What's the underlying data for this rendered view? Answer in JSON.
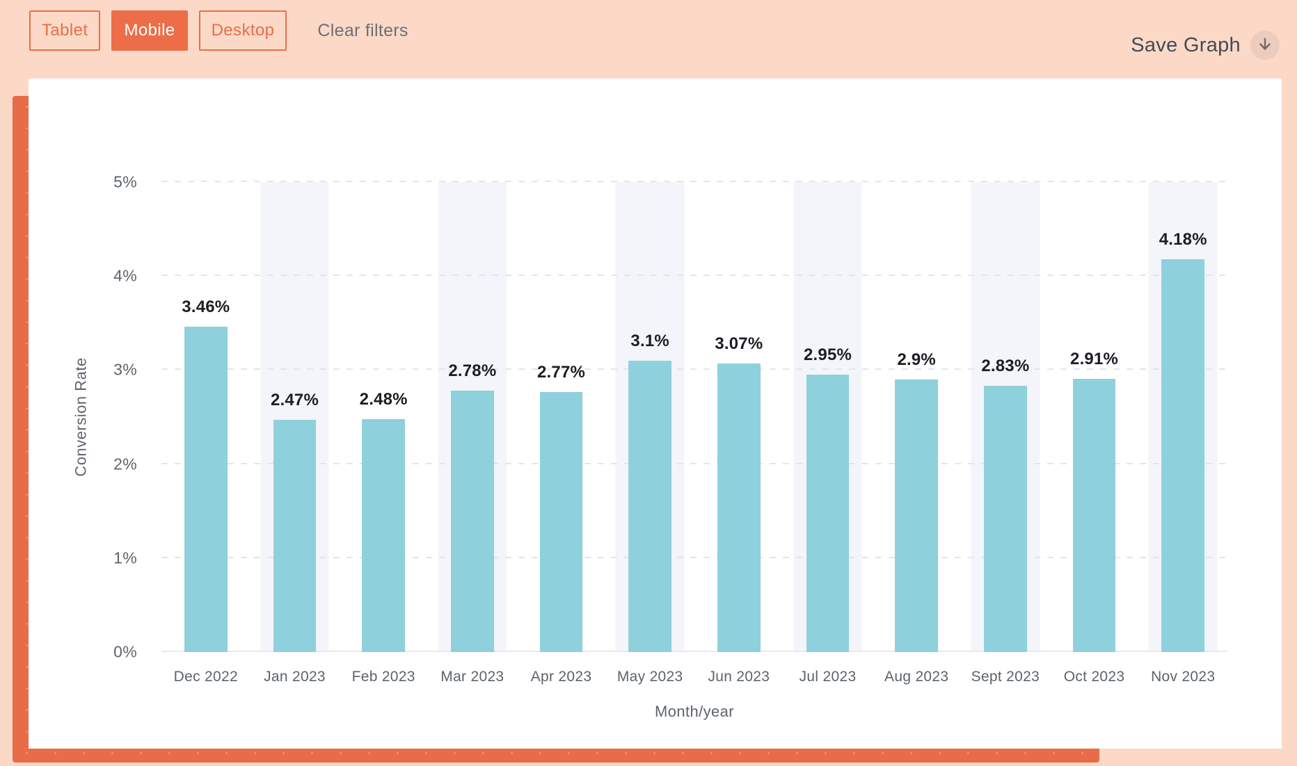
{
  "header": {
    "filters": [
      {
        "label": "Tablet",
        "active": false
      },
      {
        "label": "Mobile",
        "active": true
      },
      {
        "label": "Desktop",
        "active": false
      }
    ],
    "clear_filters_label": "Clear filters",
    "save_graph_label": "Save Graph",
    "save_graph_icon": "download-arrow-icon"
  },
  "chart_data": {
    "type": "bar",
    "title": "",
    "xlabel": "Month/year",
    "ylabel": "Conversion Rate",
    "categories": [
      "Dec 2022",
      "Jan 2023",
      "Feb 2023",
      "Mar 2023",
      "Apr 2023",
      "May 2023",
      "Jun 2023",
      "Jul 2023",
      "Aug 2023",
      "Sept 2023",
      "Oct 2023",
      "Nov 2023"
    ],
    "values": [
      3.46,
      2.47,
      2.48,
      2.78,
      2.77,
      3.1,
      3.07,
      2.95,
      2.9,
      2.83,
      2.91,
      4.18
    ],
    "value_labels": [
      "3.46%",
      "2.47%",
      "2.48%",
      "2.78%",
      "2.77%",
      "3.1%",
      "3.07%",
      "2.95%",
      "2.9%",
      "2.83%",
      "2.91%",
      "4.18%"
    ],
    "y_tick_labels": [
      "5%",
      "4%",
      "3%",
      "2%",
      "1%",
      "0%"
    ],
    "ylim": [
      0,
      5
    ],
    "grid": "horizontal-dashed",
    "legend": "none",
    "banded_columns": [
      1,
      3,
      5,
      7,
      9,
      11
    ]
  },
  "colors": {
    "page_background": "#fbd9c6",
    "accent_orange": "#ec6d48",
    "backdrop_orange": "#e76c47",
    "card_background": "#ffffff",
    "bar_fill": "#8ed0dc",
    "column_band": "#f3f5fa",
    "gridline": "#e2e5ee",
    "axis_text": "#5d636c",
    "value_label_text": "#1b1e23",
    "clear_filters_text": "#6b7076",
    "save_graph_text": "#454b54",
    "download_circle": "#ecccbc"
  }
}
